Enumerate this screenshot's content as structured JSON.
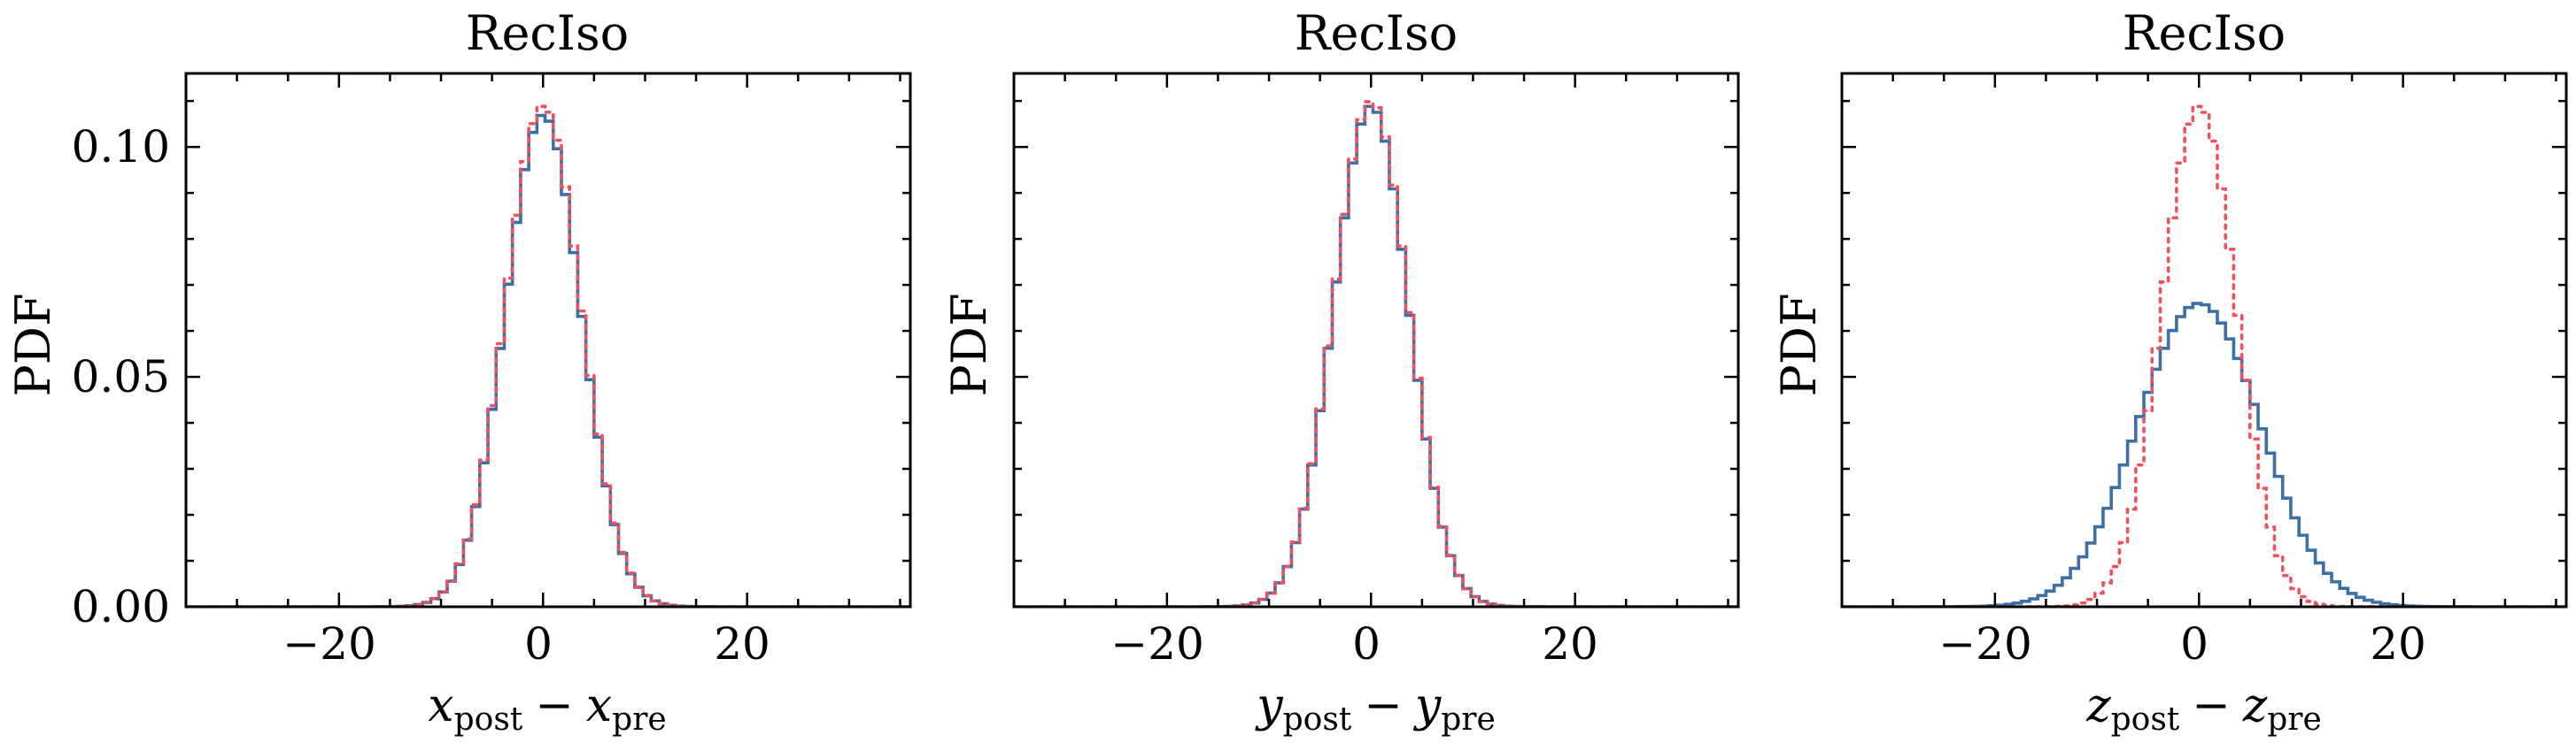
{
  "colors": {
    "histogram": "#3b6fa6",
    "reference": "#f0505f"
  },
  "chart_data": [
    {
      "type": "histogram",
      "title": "RecIso",
      "xlabel": {
        "var": "x",
        "sub1": "post",
        "op": "−",
        "sub2": "pre"
      },
      "ylabel": "PDF",
      "xlim": [
        -35,
        36
      ],
      "ylim": [
        0,
        0.116
      ],
      "xticks": [
        -20,
        0,
        20
      ],
      "xticklabels": [
        "−20",
        "0",
        "20"
      ],
      "yticks": [
        0.0,
        0.05,
        0.1
      ],
      "yticklabels": [
        "0.00",
        "0.05",
        "0.10"
      ],
      "grid": false,
      "bin_width": 0.8,
      "histogram": {
        "mean": 0.0,
        "std": 3.7,
        "amplitude": 0.107
      },
      "reference": {
        "mean": 0.0,
        "std": 3.7,
        "amplitude": 0.109
      }
    },
    {
      "type": "histogram",
      "title": "RecIso",
      "xlabel": {
        "var": "y",
        "sub1": "post",
        "op": "−",
        "sub2": "pre"
      },
      "ylabel": "PDF",
      "xlim": [
        -35,
        36
      ],
      "ylim": [
        0,
        0.116
      ],
      "xticks": [
        -20,
        0,
        20
      ],
      "xticklabels": [
        "−20",
        "0",
        "20"
      ],
      "yticks": [
        0.0,
        0.05,
        0.1
      ],
      "yticklabels": [],
      "grid": false,
      "bin_width": 0.8,
      "histogram": {
        "mean": 0.0,
        "std": 3.65,
        "amplitude": 0.109
      },
      "reference": {
        "mean": 0.0,
        "std": 3.65,
        "amplitude": 0.11
      }
    },
    {
      "type": "histogram",
      "title": "RecIso",
      "xlabel": {
        "var": "z",
        "sub1": "post",
        "op": "−",
        "sub2": "pre"
      },
      "ylabel": "PDF",
      "xlim": [
        -35,
        36
      ],
      "ylim": [
        0,
        0.116
      ],
      "xticks": [
        -20,
        0,
        20
      ],
      "xticklabels": [
        "−20",
        "0",
        "20"
      ],
      "yticks": [
        0.0,
        0.05,
        0.1
      ],
      "yticklabels": [],
      "grid": false,
      "bin_width": 0.8,
      "histogram": {
        "mean": 0.0,
        "std": 6.0,
        "amplitude": 0.066
      },
      "reference": {
        "mean": 0.0,
        "std": 3.65,
        "amplitude": 0.109
      }
    }
  ]
}
